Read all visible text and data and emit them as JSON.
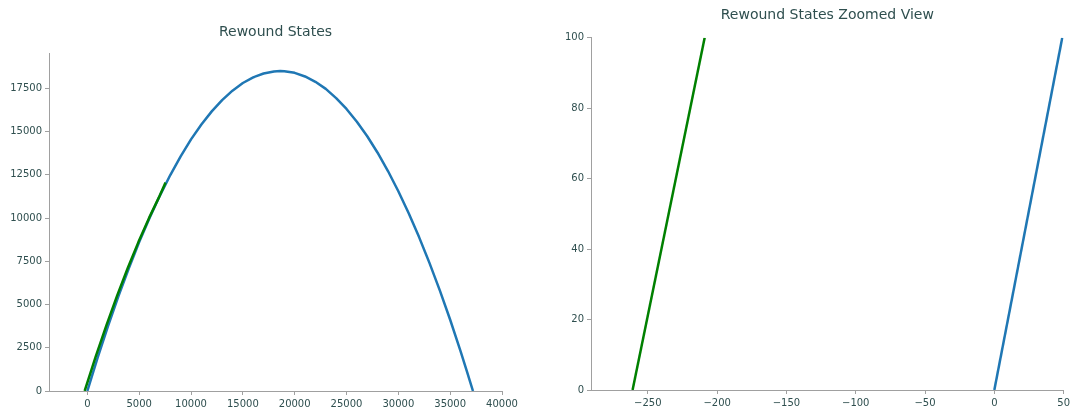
{
  "chart_data": [
    {
      "type": "line",
      "title": "Rewound States",
      "xlim": [
        -3700,
        40000
      ],
      "ylim": [
        0,
        19500
      ],
      "xticks": [
        0,
        5000,
        10000,
        15000,
        20000,
        25000,
        30000,
        35000,
        40000
      ],
      "yticks": [
        0,
        2500,
        5000,
        7500,
        10000,
        12500,
        15000,
        17500
      ],
      "marker": "none",
      "series": [
        {
          "color": "#1f77b4",
          "x": [
            0,
            500,
            1000,
            2000,
            3000,
            4000,
            5000,
            6000,
            7000,
            8000,
            9000,
            10000,
            11000,
            12000,
            13000,
            14000,
            15000,
            16000,
            17000,
            18000,
            18600,
            19000,
            20000,
            21000,
            22000,
            23000,
            24000,
            25000,
            26000,
            27000,
            28000,
            29000,
            30000,
            31000,
            32000,
            33000,
            34000,
            35000,
            36000,
            36600,
            37200
          ],
          "values": [
            0,
            980,
            1940,
            3770,
            5490,
            7100,
            8610,
            10010,
            11300,
            12490,
            13570,
            14550,
            15410,
            16170,
            16820,
            17370,
            17810,
            18140,
            18360,
            18480,
            18500,
            18490,
            18400,
            18190,
            17880,
            17470,
            16940,
            16310,
            15570,
            14730,
            13780,
            12720,
            11550,
            10280,
            8900,
            7410,
            5820,
            4120,
            2310,
            1170,
            0
          ]
        },
        {
          "color": "#008000",
          "x": [
            -261,
            780,
            1820,
            2855,
            3890,
            4925,
            5955,
            6985,
            7540
          ],
          "values": [
            0,
            1940,
            3770,
            5490,
            7100,
            8610,
            10010,
            11300,
            12050
          ]
        }
      ]
    },
    {
      "type": "line",
      "title": "Rewound States Zoomed View",
      "xlim": [
        -291,
        50
      ],
      "ylim": [
        0,
        100
      ],
      "xticks": [
        {
          "value": -250,
          "label": "−250"
        },
        {
          "value": -200,
          "label": "−200"
        },
        {
          "value": -150,
          "label": "−150"
        },
        {
          "value": -100,
          "label": "−100"
        },
        {
          "value": -50,
          "label": "−50"
        },
        0,
        50
      ],
      "yticks": [
        0,
        20,
        40,
        60,
        80,
        100
      ],
      "marker": "none",
      "series": [
        {
          "color": "#1f77b4",
          "x": [
            0,
            49
          ],
          "values": [
            0,
            100
          ]
        },
        {
          "color": "#008000",
          "x": [
            -261,
            -209
          ],
          "values": [
            0,
            100
          ]
        }
      ]
    }
  ]
}
